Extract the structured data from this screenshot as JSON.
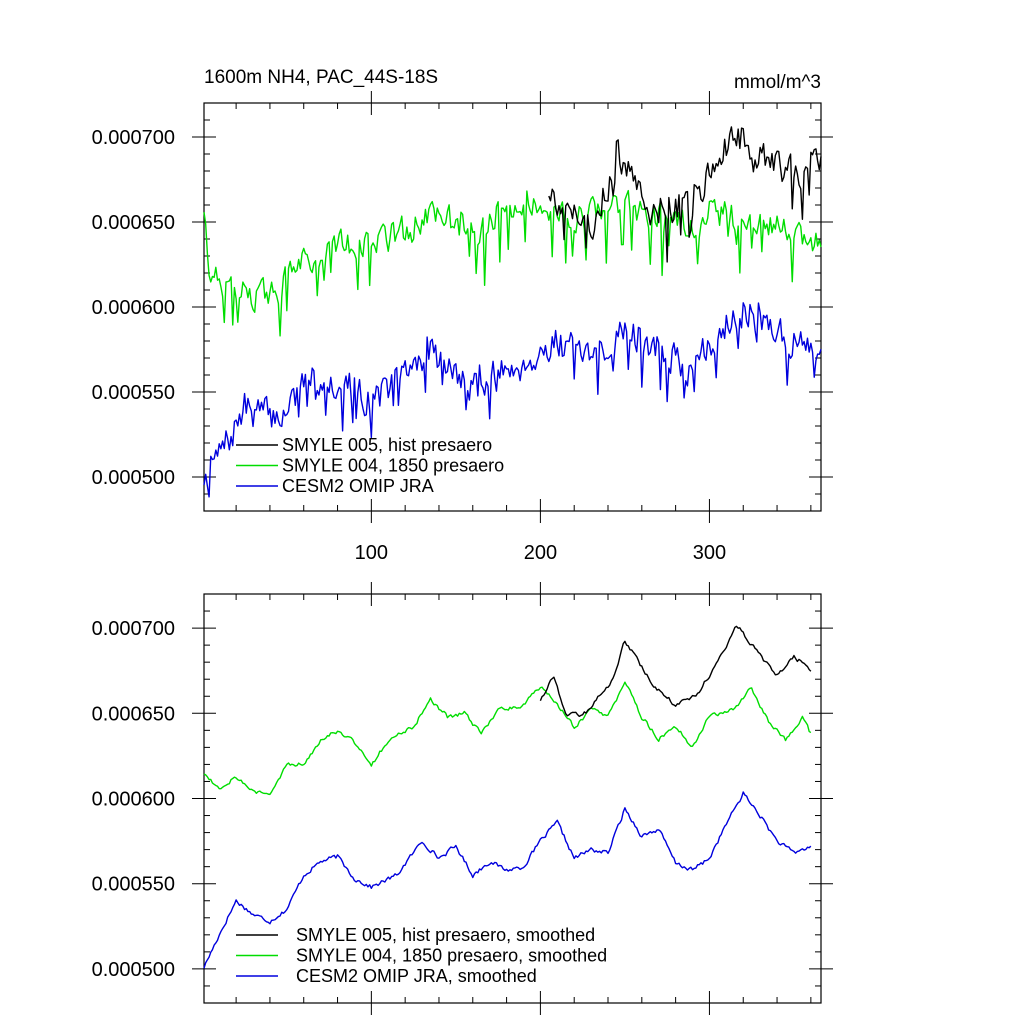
{
  "chart_data": [
    {
      "type": "line",
      "title": "1600m NH4, PAC_44S-18S",
      "units": "mmol/m^3",
      "xlabel": "",
      "ylabel": "",
      "xlim": [
        1,
        366
      ],
      "ylim": [
        0.00048,
        0.00072
      ],
      "x_ticks": [
        100,
        200,
        300
      ],
      "x_tick_labels": [
        "100",
        "200",
        "300"
      ],
      "y_ticks": [
        0.0005,
        0.00055,
        0.0006,
        0.00065,
        0.0007
      ],
      "y_tick_labels": [
        "0.000500",
        "0.000550",
        "0.000600",
        "0.000650",
        "0.000700"
      ],
      "legend_position": "bottom-left",
      "series": [
        {
          "name": "SMYLE 005, hist presaero",
          "color": "#000000",
          "x_start": 205,
          "x_end": 366,
          "anchors": [
            [
              205,
              0.00067
            ],
            [
              215,
              0.00066
            ],
            [
              230,
              0.00065
            ],
            [
              245,
              0.000685
            ],
            [
              255,
              0.00068
            ],
            [
              265,
              0.00066
            ],
            [
              280,
              0.00066
            ],
            [
              295,
              0.000665
            ],
            [
              305,
              0.00069
            ],
            [
              318,
              0.0007
            ],
            [
              330,
              0.00069
            ],
            [
              345,
              0.00068
            ],
            [
              366,
              0.00068
            ]
          ],
          "noise": 9e-06,
          "dips": 1.8e-05,
          "seed": 5
        },
        {
          "name": "SMYLE 004, 1850 presaero",
          "color": "#00dd00",
          "x_start": 1,
          "x_end": 366,
          "anchors": [
            [
              1,
              0.00066
            ],
            [
              5,
              0.000618
            ],
            [
              20,
              0.00061
            ],
            [
              40,
              0.000605
            ],
            [
              60,
              0.000625
            ],
            [
              80,
              0.00064
            ],
            [
              100,
              0.000635
            ],
            [
              120,
              0.000645
            ],
            [
              140,
              0.000655
            ],
            [
              160,
              0.00064
            ],
            [
              180,
              0.00066
            ],
            [
              200,
              0.000665
            ],
            [
              220,
              0.00065
            ],
            [
              250,
              0.00066
            ],
            [
              280,
              0.000648
            ],
            [
              300,
              0.000655
            ],
            [
              320,
              0.000652
            ],
            [
              345,
              0.000645
            ],
            [
              366,
              0.000635
            ]
          ],
          "noise": 8e-06,
          "dips": 2.2e-05,
          "seed": 4
        },
        {
          "name": "CESM2 OMIP JRA",
          "color": "#0000dd",
          "x_start": 1,
          "x_end": 366,
          "anchors": [
            [
              1,
              0.0005
            ],
            [
              15,
              0.00052
            ],
            [
              25,
              0.00054
            ],
            [
              45,
              0.000535
            ],
            [
              65,
              0.00056
            ],
            [
              85,
              0.000555
            ],
            [
              100,
              0.000545
            ],
            [
              120,
              0.00056
            ],
            [
              135,
              0.000575
            ],
            [
              155,
              0.000555
            ],
            [
              175,
              0.00056
            ],
            [
              195,
              0.00057
            ],
            [
              210,
              0.00058
            ],
            [
              230,
              0.000565
            ],
            [
              250,
              0.00059
            ],
            [
              270,
              0.000575
            ],
            [
              290,
              0.000562
            ],
            [
              315,
              0.0006
            ],
            [
              340,
              0.000588
            ],
            [
              366,
              0.000568
            ]
          ],
          "noise": 9e-06,
          "dips": 1.8e-05,
          "seed": 7
        }
      ]
    },
    {
      "type": "line",
      "title": "",
      "xlabel": "",
      "ylabel": "",
      "xlim": [
        1,
        366
      ],
      "ylim": [
        0.00048,
        0.00072
      ],
      "x_ticks": [
        100,
        200,
        300
      ],
      "x_tick_labels": [],
      "y_ticks": [
        0.0005,
        0.00055,
        0.0006,
        0.00065,
        0.0007
      ],
      "y_tick_labels": [
        "0.000500",
        "0.000550",
        "0.000600",
        "0.000650",
        "0.000700"
      ],
      "legend_position": "bottom-left",
      "series": [
        {
          "name": "SMYLE 005, hist presaero, smoothed",
          "color": "#000000",
          "x_start": 200,
          "x_end": 360,
          "anchors": [
            [
              200,
              0.000658
            ],
            [
              208,
              0.000672
            ],
            [
              215,
              0.00065
            ],
            [
              225,
              0.000648
            ],
            [
              235,
              0.00066
            ],
            [
              242,
              0.000668
            ],
            [
              250,
              0.000693
            ],
            [
              258,
              0.00068
            ],
            [
              268,
              0.000665
            ],
            [
              280,
              0.000655
            ],
            [
              292,
              0.00066
            ],
            [
              305,
              0.00068
            ],
            [
              316,
              0.000702
            ],
            [
              325,
              0.00069
            ],
            [
              333,
              0.00068
            ],
            [
              340,
              0.000672
            ],
            [
              350,
              0.000683
            ],
            [
              360,
              0.000676
            ]
          ],
          "noise": 1.2e-06,
          "dips": 0,
          "seed": 15
        },
        {
          "name": "SMYLE 004, 1850 presaero, smoothed",
          "color": "#00dd00",
          "x_start": 1,
          "x_end": 360,
          "anchors": [
            [
              1,
              0.000615
            ],
            [
              10,
              0.000606
            ],
            [
              20,
              0.000613
            ],
            [
              30,
              0.000604
            ],
            [
              40,
              0.000602
            ],
            [
              50,
              0.00062
            ],
            [
              60,
              0.00062
            ],
            [
              70,
              0.000635
            ],
            [
              80,
              0.00064
            ],
            [
              90,
              0.000633
            ],
            [
              100,
              0.00062
            ],
            [
              110,
              0.000634
            ],
            [
              125,
              0.000642
            ],
            [
              135,
              0.000658
            ],
            [
              145,
              0.000648
            ],
            [
              155,
              0.00065
            ],
            [
              165,
              0.000638
            ],
            [
              175,
              0.000652
            ],
            [
              190,
              0.000655
            ],
            [
              200,
              0.000666
            ],
            [
              210,
              0.000655
            ],
            [
              220,
              0.000642
            ],
            [
              230,
              0.000652
            ],
            [
              240,
              0.000648
            ],
            [
              250,
              0.000668
            ],
            [
              260,
              0.000648
            ],
            [
              270,
              0.000635
            ],
            [
              280,
              0.000642
            ],
            [
              290,
              0.00063
            ],
            [
              300,
              0.000648
            ],
            [
              315,
              0.000652
            ],
            [
              325,
              0.000665
            ],
            [
              335,
              0.000645
            ],
            [
              345,
              0.000635
            ],
            [
              355,
              0.000648
            ],
            [
              360,
              0.000638
            ]
          ],
          "noise": 1.2e-06,
          "dips": 0,
          "seed": 14
        },
        {
          "name": "CESM2 OMIP JRA, smoothed",
          "color": "#0000dd",
          "x_start": 1,
          "x_end": 360,
          "anchors": [
            [
              1,
              0.000501
            ],
            [
              10,
              0.00052
            ],
            [
              20,
              0.00054
            ],
            [
              30,
              0.000532
            ],
            [
              40,
              0.000528
            ],
            [
              50,
              0.000535
            ],
            [
              60,
              0.000555
            ],
            [
              70,
              0.000563
            ],
            [
              80,
              0.000566
            ],
            [
              90,
              0.000553
            ],
            [
              100,
              0.000548
            ],
            [
              115,
              0.000555
            ],
            [
              130,
              0.000575
            ],
            [
              140,
              0.000565
            ],
            [
              150,
              0.000572
            ],
            [
              160,
              0.000555
            ],
            [
              170,
              0.000563
            ],
            [
              180,
              0.000558
            ],
            [
              190,
              0.00056
            ],
            [
              200,
              0.000575
            ],
            [
              210,
              0.000586
            ],
            [
              220,
              0.000565
            ],
            [
              230,
              0.00057
            ],
            [
              240,
              0.000568
            ],
            [
              250,
              0.000594
            ],
            [
              260,
              0.000578
            ],
            [
              270,
              0.000582
            ],
            [
              280,
              0.000562
            ],
            [
              290,
              0.000558
            ],
            [
              300,
              0.000565
            ],
            [
              310,
              0.000585
            ],
            [
              320,
              0.000603
            ],
            [
              330,
              0.00059
            ],
            [
              340,
              0.000575
            ],
            [
              350,
              0.000568
            ],
            [
              360,
              0.000572
            ]
          ],
          "noise": 1.2e-06,
          "dips": 0,
          "seed": 17
        }
      ]
    }
  ]
}
